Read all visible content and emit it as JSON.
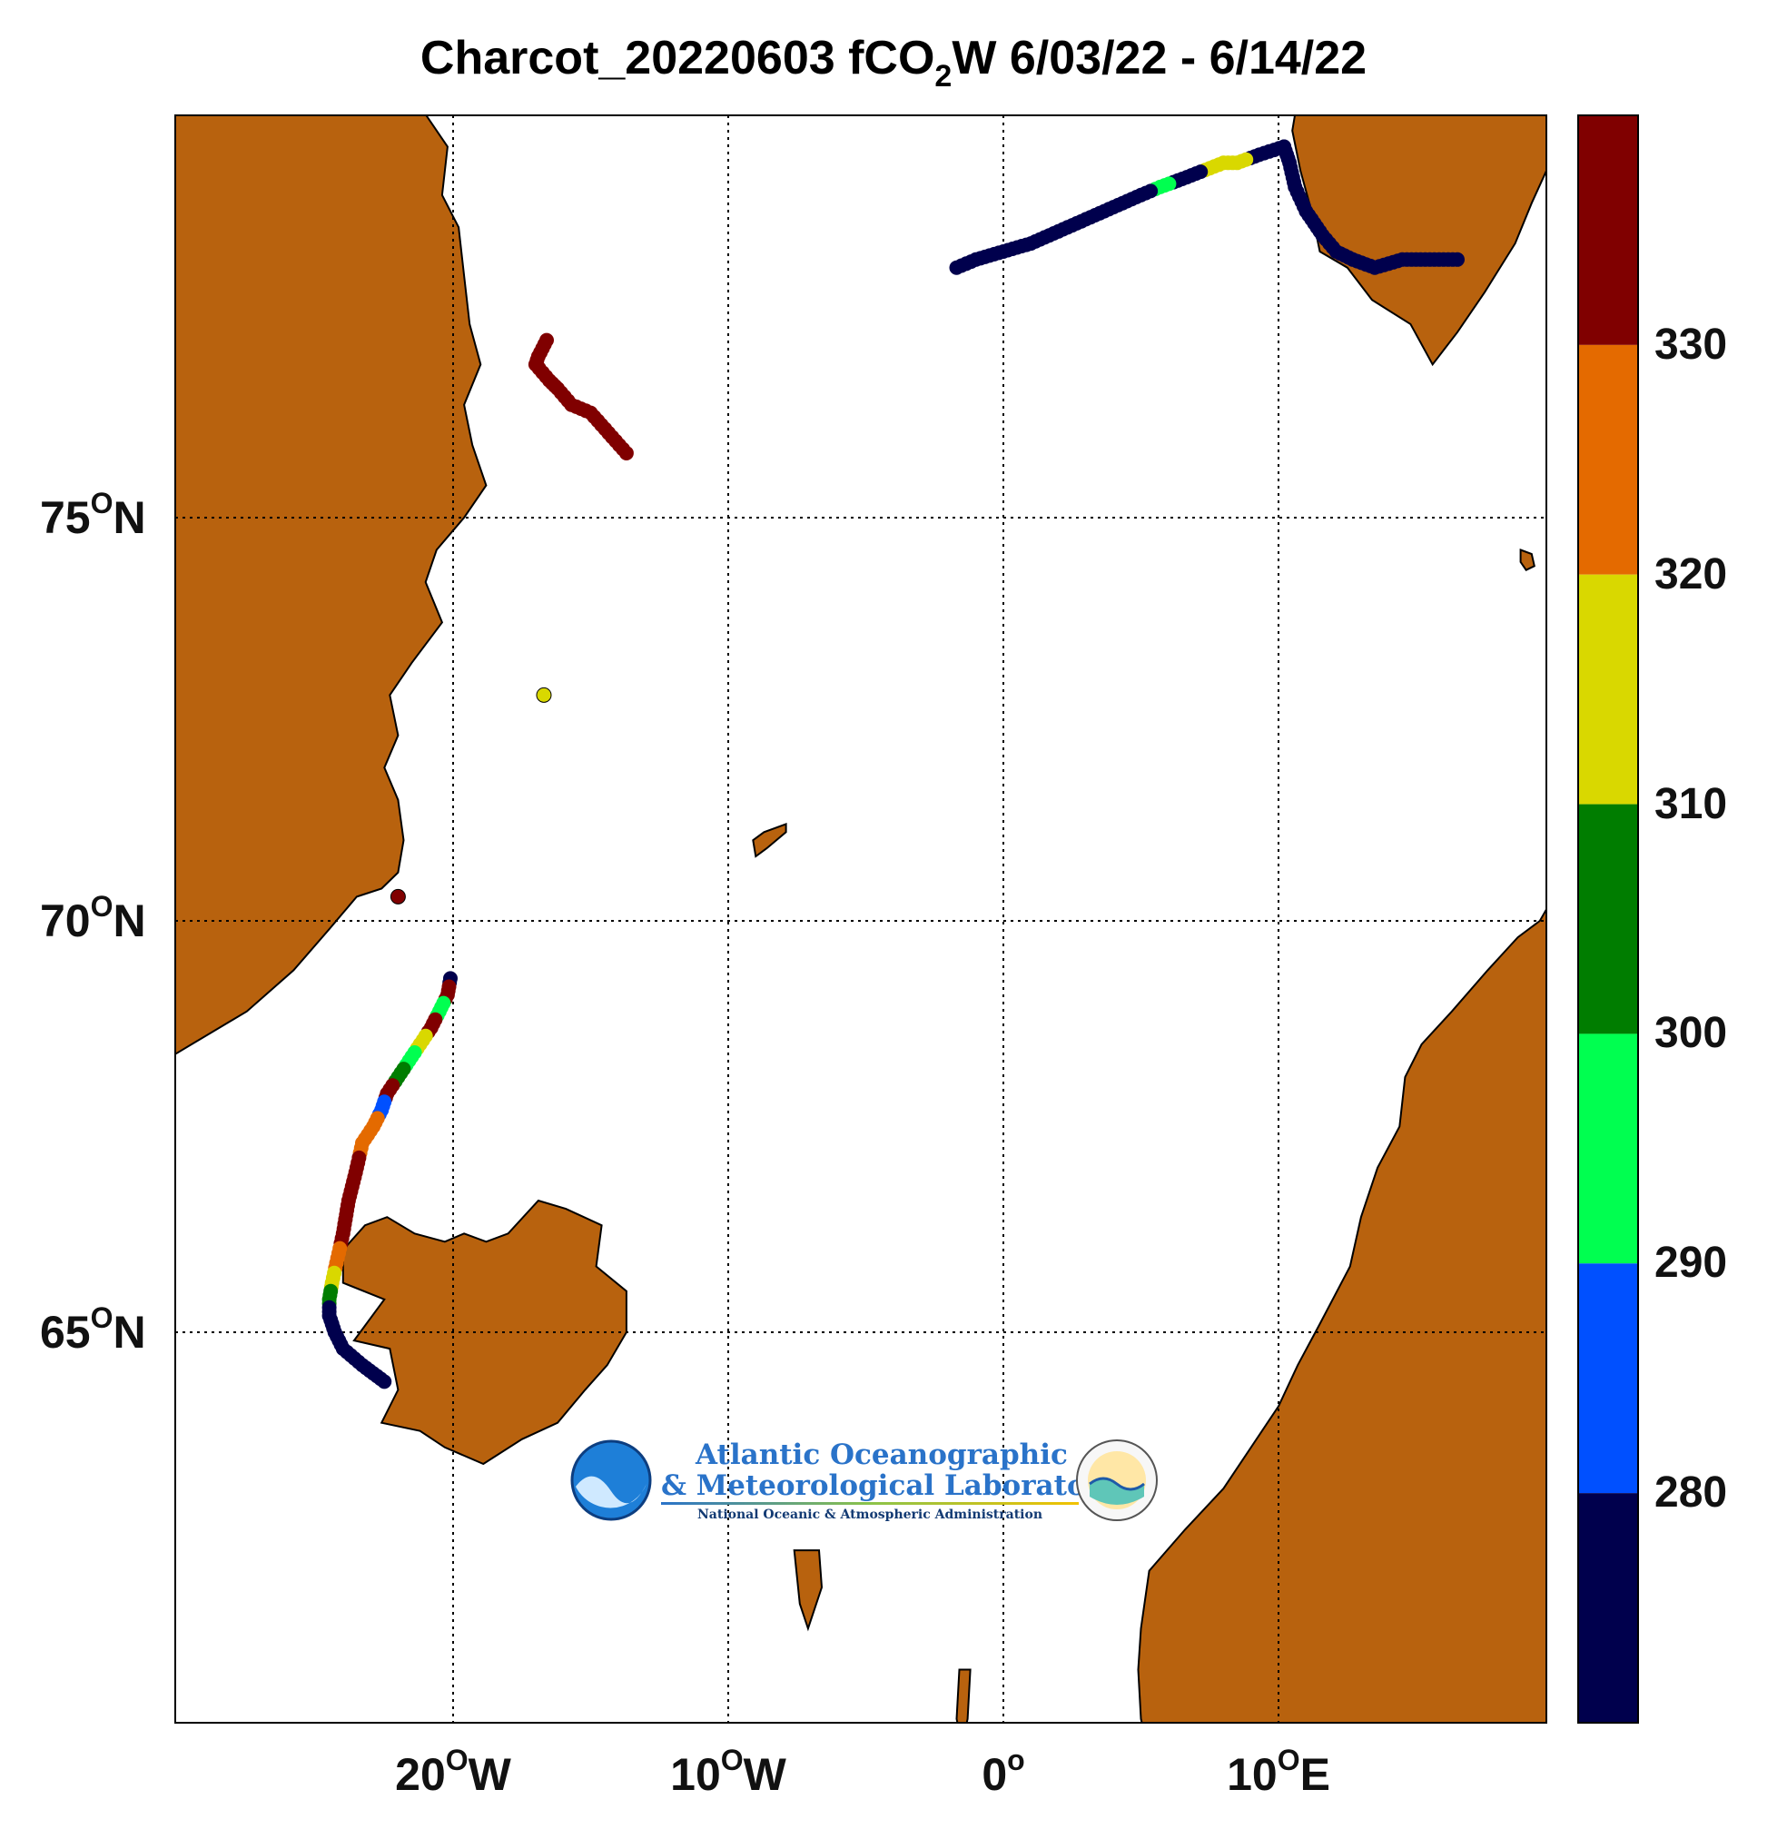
{
  "title": {
    "prefix": "Charcot_20220603 fCO",
    "sub": "2",
    "suffix": "W 6/03/22 - 6/14/22"
  },
  "axes": {
    "lat_labels": [
      {
        "deg": "75",
        "sup": "O",
        "hemi": "N",
        "value": 75
      },
      {
        "deg": "70",
        "sup": "O",
        "hemi": "N",
        "value": 70
      },
      {
        "deg": "65",
        "sup": "O",
        "hemi": "N",
        "value": 65
      }
    ],
    "lon_labels": [
      {
        "deg": "20",
        "sup": "O",
        "hemi": "W",
        "value": -20
      },
      {
        "deg": "10",
        "sup": "O",
        "hemi": "W",
        "value": -10
      },
      {
        "deg": "0",
        "sup": "o",
        "hemi": "",
        "value": 0
      },
      {
        "deg": "10",
        "sup": "O",
        "hemi": "E",
        "value": 10
      }
    ],
    "lon_range": [
      -30,
      20
    ],
    "lat_range": [
      60,
      80
    ],
    "grid": "dotted"
  },
  "colorbar": {
    "ticks": [
      "330",
      "320",
      "310",
      "300",
      "290",
      "280"
    ],
    "range": [
      270,
      340
    ],
    "bands": [
      {
        "from": 330,
        "to": 340,
        "color": "#800000"
      },
      {
        "from": 320,
        "to": 330,
        "color": "#e46a00"
      },
      {
        "from": 310,
        "to": 320,
        "color": "#d9d800"
      },
      {
        "from": 300,
        "to": 310,
        "color": "#007d00"
      },
      {
        "from": 290,
        "to": 300,
        "color": "#00ff50"
      },
      {
        "from": 280,
        "to": 290,
        "color": "#0050ff"
      },
      {
        "from": 270,
        "to": 280,
        "color": "#00004d"
      }
    ]
  },
  "colors": {
    "land": "#b8620e",
    "ocean": "#ffffff"
  },
  "logo": {
    "line1": "Atlantic Oceanographic",
    "line2": "& Meteorological Laboratory",
    "line3": "National Oceanic & Atmospheric Administration",
    "badge": "NOAA"
  },
  "chart_data": {
    "type": "scatter",
    "x_label": "",
    "y_label": "",
    "tracks": [
      {
        "segment": "svalbard-return",
        "points": [
          [
            16.5,
            78.2,
            275
          ],
          [
            15.5,
            78.2,
            275
          ],
          [
            14.5,
            78.2,
            275
          ],
          [
            13.5,
            78.1,
            275
          ],
          [
            12.7,
            78.2,
            275
          ],
          [
            12.1,
            78.3,
            275
          ],
          [
            11.6,
            78.5,
            275
          ],
          [
            11.0,
            78.8,
            275
          ],
          [
            10.6,
            79.1,
            275
          ],
          [
            10.4,
            79.4,
            275
          ],
          [
            10.2,
            79.6,
            275
          ]
        ]
      },
      {
        "segment": "svalbard-to-west",
        "points": [
          [
            10.2,
            79.6,
            275
          ],
          [
            9.3,
            79.5,
            275
          ],
          [
            8.5,
            79.4,
            316
          ],
          [
            8.0,
            79.4,
            316
          ],
          [
            6.5,
            79.2,
            275
          ],
          [
            5.7,
            79.1,
            298
          ],
          [
            5.0,
            79.0,
            275
          ],
          [
            3.0,
            78.7,
            275
          ],
          [
            1.0,
            78.4,
            275
          ],
          [
            0.0,
            78.3,
            275
          ],
          [
            -1.0,
            78.2,
            275
          ],
          [
            -1.7,
            78.1,
            275
          ]
        ]
      },
      {
        "segment": "greenland-shelf",
        "points": [
          [
            -16.6,
            77.2,
            335
          ],
          [
            -16.9,
            77.0,
            335
          ],
          [
            -17.0,
            76.9,
            335
          ],
          [
            -16.5,
            76.7,
            335
          ],
          [
            -16.2,
            76.6,
            335
          ],
          [
            -15.7,
            76.4,
            335
          ],
          [
            -15.0,
            76.3,
            335
          ],
          [
            -13.7,
            75.8,
            335
          ]
        ]
      },
      {
        "segment": "mid-sea-point",
        "points": [
          [
            -16.7,
            72.8,
            315
          ]
        ]
      },
      {
        "segment": "scoresby-point",
        "points": [
          [
            -22.0,
            70.3,
            335
          ]
        ]
      },
      {
        "segment": "denmark-strait",
        "points": [
          [
            -20.1,
            69.3,
            275
          ],
          [
            -20.2,
            69.1,
            335
          ],
          [
            -20.5,
            68.9,
            296
          ],
          [
            -20.8,
            68.7,
            335
          ],
          [
            -21.2,
            68.5,
            316
          ],
          [
            -21.6,
            68.3,
            296
          ],
          [
            -22.0,
            68.1,
            308
          ],
          [
            -22.4,
            67.9,
            335
          ],
          [
            -22.6,
            67.7,
            285
          ],
          [
            -22.9,
            67.5,
            325
          ],
          [
            -23.3,
            67.3,
            325
          ],
          [
            -23.5,
            67.0,
            335
          ],
          [
            -23.8,
            66.6,
            335
          ],
          [
            -24.0,
            66.2,
            335
          ],
          [
            -24.2,
            65.9,
            325
          ],
          [
            -24.4,
            65.6,
            316
          ],
          [
            -24.5,
            65.4,
            308
          ],
          [
            -24.5,
            65.2,
            275
          ],
          [
            -24.3,
            65.0,
            275
          ],
          [
            -24.0,
            64.8,
            275
          ],
          [
            -23.3,
            64.6,
            275
          ],
          [
            -22.5,
            64.4,
            275
          ]
        ]
      }
    ]
  }
}
